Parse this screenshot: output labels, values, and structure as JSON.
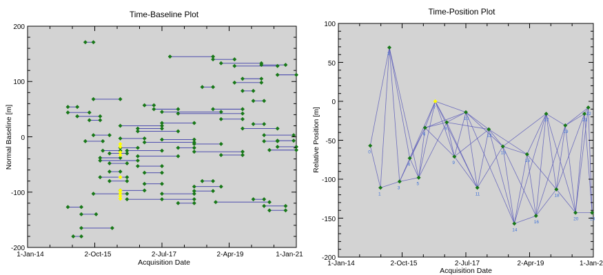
{
  "chart_data": [
    {
      "type": "scatter",
      "title": "Time-Baseline Plot",
      "xlabel": "Acquisition Date",
      "ylabel": "Normal Baseline [m]",
      "x_ticks": [
        "1-Jan-14",
        "2-Oct-15",
        "2-Jul-17",
        "2-Apr-19",
        "1-Jan-21"
      ],
      "y_ticks": [
        "200",
        "100",
        "0",
        "-100",
        "-200"
      ],
      "ylim": [
        -200,
        200
      ],
      "grid": false,
      "colors": {
        "background": "#d3d3d3",
        "point": "#187818",
        "line": "#3b3ba8",
        "highlight": "#ffff00"
      },
      "edges": [
        [
          0.15,
          54,
          0.185,
          54
        ],
        [
          0.15,
          44,
          0.23,
          44
        ],
        [
          0.185,
          37,
          0.27,
          37
        ],
        [
          0.23,
          30,
          0.27,
          30
        ],
        [
          0.215,
          171,
          0.245,
          171
        ],
        [
          0.245,
          68,
          0.345,
          68
        ],
        [
          0.215,
          -8,
          0.28,
          -8
        ],
        [
          0.245,
          3,
          0.305,
          3
        ],
        [
          0.345,
          -3,
          0.435,
          -3
        ],
        [
          0.28,
          -25,
          0.345,
          -25
        ],
        [
          0.305,
          -30,
          0.37,
          -30
        ],
        [
          0.27,
          -38,
          0.345,
          -38
        ],
        [
          0.27,
          -43,
          0.41,
          -43
        ],
        [
          0.305,
          -48,
          0.37,
          -48
        ],
        [
          0.305,
          -63,
          0.345,
          -63
        ],
        [
          0.27,
          -73,
          0.37,
          -73
        ],
        [
          0.305,
          -80,
          0.37,
          -80
        ],
        [
          0.245,
          -103,
          0.37,
          -103
        ],
        [
          0.345,
          -97,
          0.435,
          -97
        ],
        [
          0.37,
          -113,
          0.5,
          -113
        ],
        [
          0.15,
          -127,
          0.2,
          -127
        ],
        [
          0.2,
          -140,
          0.255,
          -140
        ],
        [
          0.2,
          -165,
          0.315,
          -165
        ],
        [
          0.17,
          -180,
          0.2,
          -180
        ],
        [
          0.345,
          20,
          0.5,
          20
        ],
        [
          0.345,
          -20,
          0.41,
          -20
        ],
        [
          0.37,
          -25,
          0.5,
          -25
        ],
        [
          0.41,
          -35,
          0.56,
          -35
        ],
        [
          0.41,
          -53,
          0.5,
          -53
        ],
        [
          0.435,
          -85,
          0.5,
          -85
        ],
        [
          0.435,
          -65,
          0.5,
          -65
        ],
        [
          0.41,
          15,
          0.5,
          15
        ],
        [
          0.41,
          10,
          0.56,
          10
        ],
        [
          0.435,
          -10,
          0.62,
          -10
        ],
        [
          0.5,
          -103,
          0.62,
          -103
        ],
        [
          0.5,
          -113,
          0.62,
          -113
        ],
        [
          0.56,
          -120,
          0.62,
          -120
        ],
        [
          0.62,
          -90,
          0.72,
          -90
        ],
        [
          0.62,
          -27,
          0.8,
          -27
        ],
        [
          0.56,
          -20,
          0.62,
          -20
        ],
        [
          0.62,
          -13,
          0.72,
          -13
        ],
        [
          0.5,
          -5,
          0.62,
          -5
        ],
        [
          0.5,
          25,
          0.62,
          25
        ],
        [
          0.5,
          45,
          0.72,
          45
        ],
        [
          0.56,
          42,
          0.8,
          42
        ],
        [
          0.435,
          57,
          0.47,
          57
        ],
        [
          0.47,
          50,
          0.56,
          50
        ],
        [
          0.69,
          50,
          0.8,
          50
        ],
        [
          0.53,
          145,
          0.69,
          145
        ],
        [
          0.69,
          140,
          0.77,
          140
        ],
        [
          0.72,
          133,
          0.87,
          133
        ],
        [
          0.77,
          128,
          0.93,
          128
        ],
        [
          0.87,
          130,
          0.96,
          130
        ],
        [
          0.8,
          105,
          0.87,
          105
        ],
        [
          0.77,
          98,
          0.87,
          98
        ],
        [
          0.8,
          83,
          0.84,
          83
        ],
        [
          0.65,
          90,
          0.69,
          90
        ],
        [
          0.72,
          32,
          0.8,
          32
        ],
        [
          0.8,
          15,
          0.93,
          15
        ],
        [
          0.84,
          23,
          0.88,
          23
        ],
        [
          0.7,
          -118,
          0.9,
          -118
        ],
        [
          0.84,
          -113,
          0.88,
          -113
        ],
        [
          0.88,
          -125,
          0.96,
          -125
        ],
        [
          0.9,
          -133,
          0.96,
          -133
        ],
        [
          0.72,
          -33,
          0.8,
          -33
        ],
        [
          0.88,
          3,
          0.99,
          3
        ],
        [
          0.93,
          -7,
          0.99,
          -7
        ],
        [
          0.93,
          -18,
          1.0,
          -18
        ],
        [
          0.9,
          -24,
          1.0,
          -24
        ],
        [
          0.88,
          -8,
          0.93,
          -8
        ],
        [
          0.62,
          -98,
          0.69,
          -98
        ],
        [
          0.65,
          -80,
          0.69,
          -80
        ],
        [
          0.93,
          112,
          1.0,
          112
        ],
        [
          0.84,
          65,
          0.88,
          65
        ]
      ],
      "highlight_points": [
        [
          0.345,
          -13
        ],
        [
          0.345,
          -18
        ],
        [
          0.345,
          -28
        ],
        [
          0.345,
          -33
        ],
        [
          0.345,
          -73
        ],
        [
          0.345,
          -97
        ],
        [
          0.345,
          -102
        ],
        [
          0.345,
          -107
        ],
        [
          0.345,
          -112
        ]
      ]
    },
    {
      "type": "scatter",
      "title": "Time-Position Plot",
      "xlabel": "Acquisition Date",
      "ylabel": "Relative Position [m]",
      "x_ticks": [
        "1-Jan-14",
        "2-Oct-15",
        "2-Jul-17",
        "2-Apr-19",
        "1-Jan-2"
      ],
      "y_ticks": [
        "100",
        "50",
        "0",
        "-50",
        "-100",
        "-150",
        "-200"
      ],
      "ylim": [
        -200,
        100
      ],
      "grid": false,
      "colors": {
        "background": "#d3d3d3",
        "point": "#187818",
        "line": "#5a5ab8",
        "highlight": "#ffff00",
        "label": "#3a6fd8"
      },
      "points": [
        {
          "n": "0",
          "x": 0.125,
          "y": -57
        },
        {
          "n": "1",
          "x": 0.165,
          "y": -111
        },
        {
          "n": "2",
          "x": 0.2,
          "y": 69
        },
        {
          "n": "3",
          "x": 0.24,
          "y": -103
        },
        {
          "n": "4",
          "x": 0.28,
          "y": -73
        },
        {
          "n": "5",
          "x": 0.315,
          "y": -98
        },
        {
          "n": "6",
          "x": 0.34,
          "y": -34
        },
        {
          "n": "7",
          "x": 0.38,
          "y": 0
        },
        {
          "n": "8",
          "x": 0.425,
          "y": -27
        },
        {
          "n": "9",
          "x": 0.455,
          "y": -71
        },
        {
          "n": "10",
          "x": 0.5,
          "y": -14
        },
        {
          "n": "11",
          "x": 0.545,
          "y": -111
        },
        {
          "n": "12",
          "x": 0.59,
          "y": -36
        },
        {
          "n": "13",
          "x": 0.645,
          "y": -58
        },
        {
          "n": "14",
          "x": 0.69,
          "y": -157
        },
        {
          "n": "15",
          "x": 0.74,
          "y": -68
        },
        {
          "n": "16",
          "x": 0.775,
          "y": -147
        },
        {
          "n": "17",
          "x": 0.815,
          "y": -16
        },
        {
          "n": "18",
          "x": 0.855,
          "y": -113
        },
        {
          "n": "19",
          "x": 0.89,
          "y": -31
        },
        {
          "n": "20",
          "x": 0.93,
          "y": -143
        },
        {
          "n": "21",
          "x": 0.965,
          "y": -16
        },
        {
          "n": "22",
          "x": 0.98,
          "y": -8
        },
        {
          "n": "23",
          "x": 0.995,
          "y": -143
        }
      ],
      "edges": [
        [
          0,
          1
        ],
        [
          0,
          2
        ],
        [
          1,
          2
        ],
        [
          1,
          3
        ],
        [
          2,
          3
        ],
        [
          2,
          4
        ],
        [
          2,
          5
        ],
        [
          3,
          4
        ],
        [
          3,
          5
        ],
        [
          3,
          6
        ],
        [
          4,
          5
        ],
        [
          4,
          6
        ],
        [
          4,
          7
        ],
        [
          5,
          6
        ],
        [
          5,
          7
        ],
        [
          5,
          8
        ],
        [
          6,
          7
        ],
        [
          6,
          8
        ],
        [
          6,
          9
        ],
        [
          6,
          10
        ],
        [
          7,
          8
        ],
        [
          7,
          9
        ],
        [
          7,
          10
        ],
        [
          7,
          11
        ],
        [
          8,
          9
        ],
        [
          8,
          10
        ],
        [
          8,
          11
        ],
        [
          8,
          12
        ],
        [
          9,
          10
        ],
        [
          9,
          11
        ],
        [
          9,
          12
        ],
        [
          10,
          11
        ],
        [
          10,
          12
        ],
        [
          10,
          13
        ],
        [
          10,
          14
        ],
        [
          11,
          12
        ],
        [
          11,
          13
        ],
        [
          12,
          13
        ],
        [
          12,
          14
        ],
        [
          12,
          15
        ],
        [
          13,
          14
        ],
        [
          13,
          15
        ],
        [
          13,
          16
        ],
        [
          13,
          17
        ],
        [
          14,
          15
        ],
        [
          14,
          16
        ],
        [
          14,
          17
        ],
        [
          15,
          16
        ],
        [
          15,
          17
        ],
        [
          15,
          18
        ],
        [
          16,
          17
        ],
        [
          16,
          18
        ],
        [
          16,
          19
        ],
        [
          17,
          18
        ],
        [
          17,
          19
        ],
        [
          17,
          20
        ],
        [
          18,
          19
        ],
        [
          18,
          20
        ],
        [
          18,
          21
        ],
        [
          19,
          20
        ],
        [
          19,
          21
        ],
        [
          19,
          22
        ],
        [
          20,
          21
        ],
        [
          20,
          22
        ],
        [
          20,
          23
        ],
        [
          21,
          22
        ],
        [
          21,
          23
        ],
        [
          22,
          23
        ]
      ],
      "highlight_index": 7
    }
  ]
}
